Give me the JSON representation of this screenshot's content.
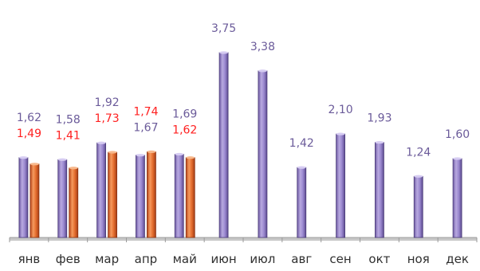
{
  "chart_data": {
    "type": "bar",
    "categories": [
      "янв",
      "фев",
      "мар",
      "апр",
      "май",
      "июн",
      "июл",
      "авг",
      "сен",
      "окт",
      "ноя",
      "дек"
    ],
    "series": [
      {
        "values": [
          1.62,
          1.58,
          1.92,
          1.67,
          1.69,
          3.75,
          3.38,
          1.42,
          2.1,
          1.93,
          1.24,
          1.6
        ],
        "labels": [
          "1,62",
          "1,58",
          "1,92",
          "1,67",
          "1,69",
          "3,75",
          "3,38",
          "1,42",
          "2,10",
          "1,93",
          "1,24",
          "1,60"
        ],
        "color": "#8e7cc3",
        "label_color": "#6b5b9a"
      },
      {
        "values": [
          1.49,
          1.41,
          1.73,
          1.74,
          1.62,
          null,
          null,
          null,
          null,
          null,
          null,
          null
        ],
        "labels": [
          "1,49",
          "1,41",
          "1,73",
          "1,74",
          "1,62",
          "",
          "",
          "",
          "",
          "",
          "",
          ""
        ],
        "color": "#e46d2e",
        "label_color": "#ff2020"
      }
    ],
    "title": "",
    "xlabel": "",
    "ylabel": "",
    "grid": false,
    "legend": "none"
  }
}
